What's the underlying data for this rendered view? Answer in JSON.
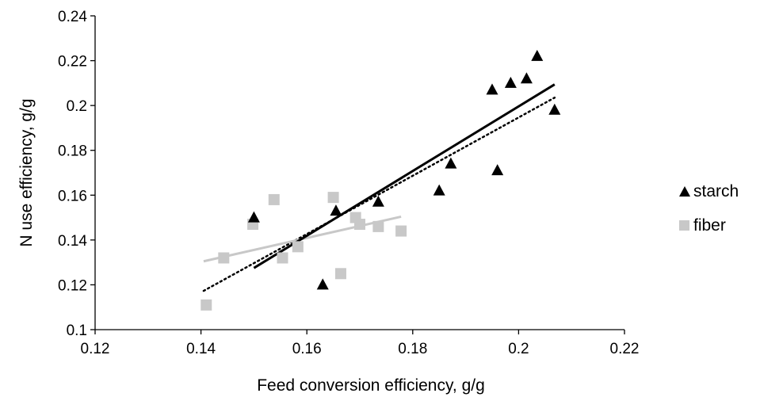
{
  "chart_data": {
    "type": "scatter",
    "xlabel": "Feed conversion efficiency, g/g",
    "ylabel": "N use efficiency, g/g",
    "xlim": [
      0.12,
      0.22
    ],
    "ylim": [
      0.1,
      0.24
    ],
    "x_ticks": [
      "0.12",
      "0.14",
      "0.16",
      "0.18",
      "0.2",
      "0.22"
    ],
    "y_ticks": [
      "0.1",
      "0.12",
      "0.14",
      "0.16",
      "0.18",
      "0.2",
      "0.22",
      "0.24"
    ],
    "x_tick_values": [
      0.12,
      0.14,
      0.16,
      0.18,
      0.2,
      0.22
    ],
    "y_tick_values": [
      0.1,
      0.12,
      0.14,
      0.16,
      0.18,
      0.2,
      0.22,
      0.24
    ],
    "grid": false,
    "legend_position": "right",
    "series": [
      {
        "name": "starch",
        "marker": "triangle",
        "color": "#000000",
        "points": [
          [
            0.15,
            0.15
          ],
          [
            0.163,
            0.12
          ],
          [
            0.1655,
            0.153
          ],
          [
            0.1735,
            0.157
          ],
          [
            0.185,
            0.162
          ],
          [
            0.1872,
            0.174
          ],
          [
            0.195,
            0.207
          ],
          [
            0.196,
            0.171
          ],
          [
            0.1985,
            0.21
          ],
          [
            0.2015,
            0.212
          ],
          [
            0.2035,
            0.222
          ],
          [
            0.2068,
            0.198
          ]
        ],
        "trendline": {
          "x": [
            0.15,
            0.2068
          ],
          "y": [
            0.1275,
            0.2094
          ],
          "style": "solid"
        }
      },
      {
        "name": "fiber",
        "marker": "square",
        "color": "#c8c8c8",
        "points": [
          [
            0.141,
            0.111
          ],
          [
            0.1443,
            0.132
          ],
          [
            0.1498,
            0.147
          ],
          [
            0.1538,
            0.158
          ],
          [
            0.1554,
            0.132
          ],
          [
            0.1583,
            0.137
          ],
          [
            0.165,
            0.159
          ],
          [
            0.1664,
            0.125
          ],
          [
            0.1692,
            0.15
          ],
          [
            0.17,
            0.147
          ],
          [
            0.1735,
            0.146
          ],
          [
            0.1778,
            0.144
          ]
        ],
        "trendline": {
          "x": [
            0.1405,
            0.1778
          ],
          "y": [
            0.1305,
            0.1504
          ],
          "style": "solid"
        }
      }
    ],
    "overall_trendline": {
      "x": [
        0.1405,
        0.2068
      ],
      "y": [
        0.1173,
        0.2035
      ],
      "style": "dotted",
      "color": "#000000"
    }
  }
}
